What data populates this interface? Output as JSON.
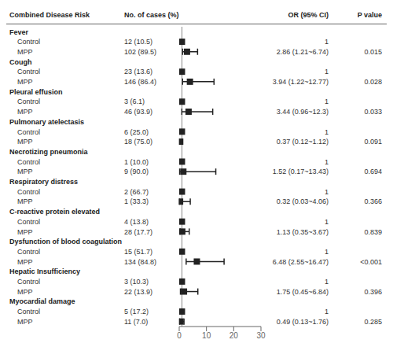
{
  "chart_data": {
    "type": "forest",
    "column_headers": [
      "Combined Disease Risk",
      "No. of cases (%)",
      "OR (95% CI)",
      "P value"
    ],
    "groups": [
      {
        "name": "Fever",
        "rows": [
          {
            "label": "Control",
            "cases": "12 (10.5)",
            "value": 1.0,
            "value_label": "1",
            "ci_low": null,
            "ci_high": null,
            "p_value": null
          },
          {
            "label": "MPP",
            "cases": "102 (89.5)",
            "value": 2.86,
            "value_label": "2.86 (1.21~6.74)",
            "ci_low": 1.21,
            "ci_high": 6.74,
            "p_value": "0.015"
          }
        ]
      },
      {
        "name": "Cough",
        "rows": [
          {
            "label": "Control",
            "cases": "23 (13.6)",
            "value": 1.0,
            "value_label": "1",
            "ci_low": null,
            "ci_high": null,
            "p_value": null
          },
          {
            "label": "MPP",
            "cases": "146 (86.4)",
            "value": 3.94,
            "value_label": "3.94 (1.22~12.77)",
            "ci_low": 1.22,
            "ci_high": 12.77,
            "p_value": "0.028"
          }
        ]
      },
      {
        "name": "Pleural effusion",
        "rows": [
          {
            "label": "Control",
            "cases": "3 (6.1)",
            "value": 1.0,
            "value_label": "1",
            "ci_low": null,
            "ci_high": null,
            "p_value": null
          },
          {
            "label": "MPP",
            "cases": "46 (93.9)",
            "value": 3.44,
            "value_label": "3.44 (0.96~12.3)",
            "ci_low": 0.96,
            "ci_high": 12.3,
            "p_value": "0.033"
          }
        ]
      },
      {
        "name": "Pulmonary atelectasis",
        "rows": [
          {
            "label": "Control",
            "cases": "6 (25.0)",
            "value": 1.0,
            "value_label": "1",
            "ci_low": null,
            "ci_high": null,
            "p_value": null
          },
          {
            "label": "MPP",
            "cases": "18 (75.0)",
            "value": 0.37,
            "value_label": "0.37 (0.12~1.12)",
            "ci_low": 0.12,
            "ci_high": 1.12,
            "p_value": "0.091"
          }
        ]
      },
      {
        "name": "Necrotizing pneumonia",
        "rows": [
          {
            "label": "Control",
            "cases": "1 (10.0)",
            "value": 1.0,
            "value_label": "1",
            "ci_low": null,
            "ci_high": null,
            "p_value": null
          },
          {
            "label": "MPP",
            "cases": "9 (90.0)",
            "value": 1.52,
            "value_label": "1.52 (0.17~13.43)",
            "ci_low": 0.17,
            "ci_high": 13.43,
            "p_value": "0.694"
          }
        ]
      },
      {
        "name": "Respiratory distress",
        "rows": [
          {
            "label": "Control",
            "cases": "2 (66.7)",
            "value": 1.0,
            "value_label": "1",
            "ci_low": null,
            "ci_high": null,
            "p_value": null
          },
          {
            "label": "MPP",
            "cases": "1 (33.3)",
            "value": 0.32,
            "value_label": "0.32 (0.03~4.06)",
            "ci_low": 0.03,
            "ci_high": 4.06,
            "p_value": "0.366"
          }
        ]
      },
      {
        "name": "C-reactive protein elevated",
        "rows": [
          {
            "label": "Control",
            "cases": "4 (13.8)",
            "value": 1.0,
            "value_label": "1",
            "ci_low": null,
            "ci_high": null,
            "p_value": null
          },
          {
            "label": "MPP",
            "cases": "28 (17.7)",
            "value": 1.13,
            "value_label": "1.13 (0.35~3.67)",
            "ci_low": 0.35,
            "ci_high": 3.67,
            "p_value": "0.839"
          }
        ]
      },
      {
        "name": "Dysfunction of blood coagulation",
        "rows": [
          {
            "label": "Control",
            "cases": "15 (51.7)",
            "value": 1.0,
            "value_label": "1",
            "ci_low": null,
            "ci_high": null,
            "p_value": null
          },
          {
            "label": "MPP",
            "cases": "134 (84.8)",
            "value": 6.48,
            "value_label": "6.48 (2.55~16.47)",
            "ci_low": 2.55,
            "ci_high": 16.47,
            "p_value": "<0.001"
          }
        ]
      },
      {
        "name": "Hepatic Insufficiency",
        "rows": [
          {
            "label": "Control",
            "cases": "3 (10.3)",
            "value": 1.0,
            "value_label": "1",
            "ci_low": null,
            "ci_high": null,
            "p_value": null
          },
          {
            "label": "MPP",
            "cases": "22 (13.9)",
            "value": 1.75,
            "value_label": "1.75 (0.45~6.84)",
            "ci_low": 0.45,
            "ci_high": 6.84,
            "p_value": "0.396"
          }
        ]
      },
      {
        "name": "Myocardial damage",
        "rows": [
          {
            "label": "Control",
            "cases": "5 (17.2)",
            "value": 1.0,
            "value_label": "1",
            "ci_low": null,
            "ci_high": null,
            "p_value": null
          },
          {
            "label": "MPP",
            "cases": "11 (7.0)",
            "value": 0.49,
            "value_label": "0.49 (0.13~1.76)",
            "ci_low": 0.13,
            "ci_high": 1.76,
            "p_value": "0.285"
          }
        ]
      }
    ],
    "xlim": [
      0,
      30
    ],
    "xticks": [
      0,
      10,
      20,
      30
    ],
    "reference_line": 1,
    "color": "#222222"
  }
}
